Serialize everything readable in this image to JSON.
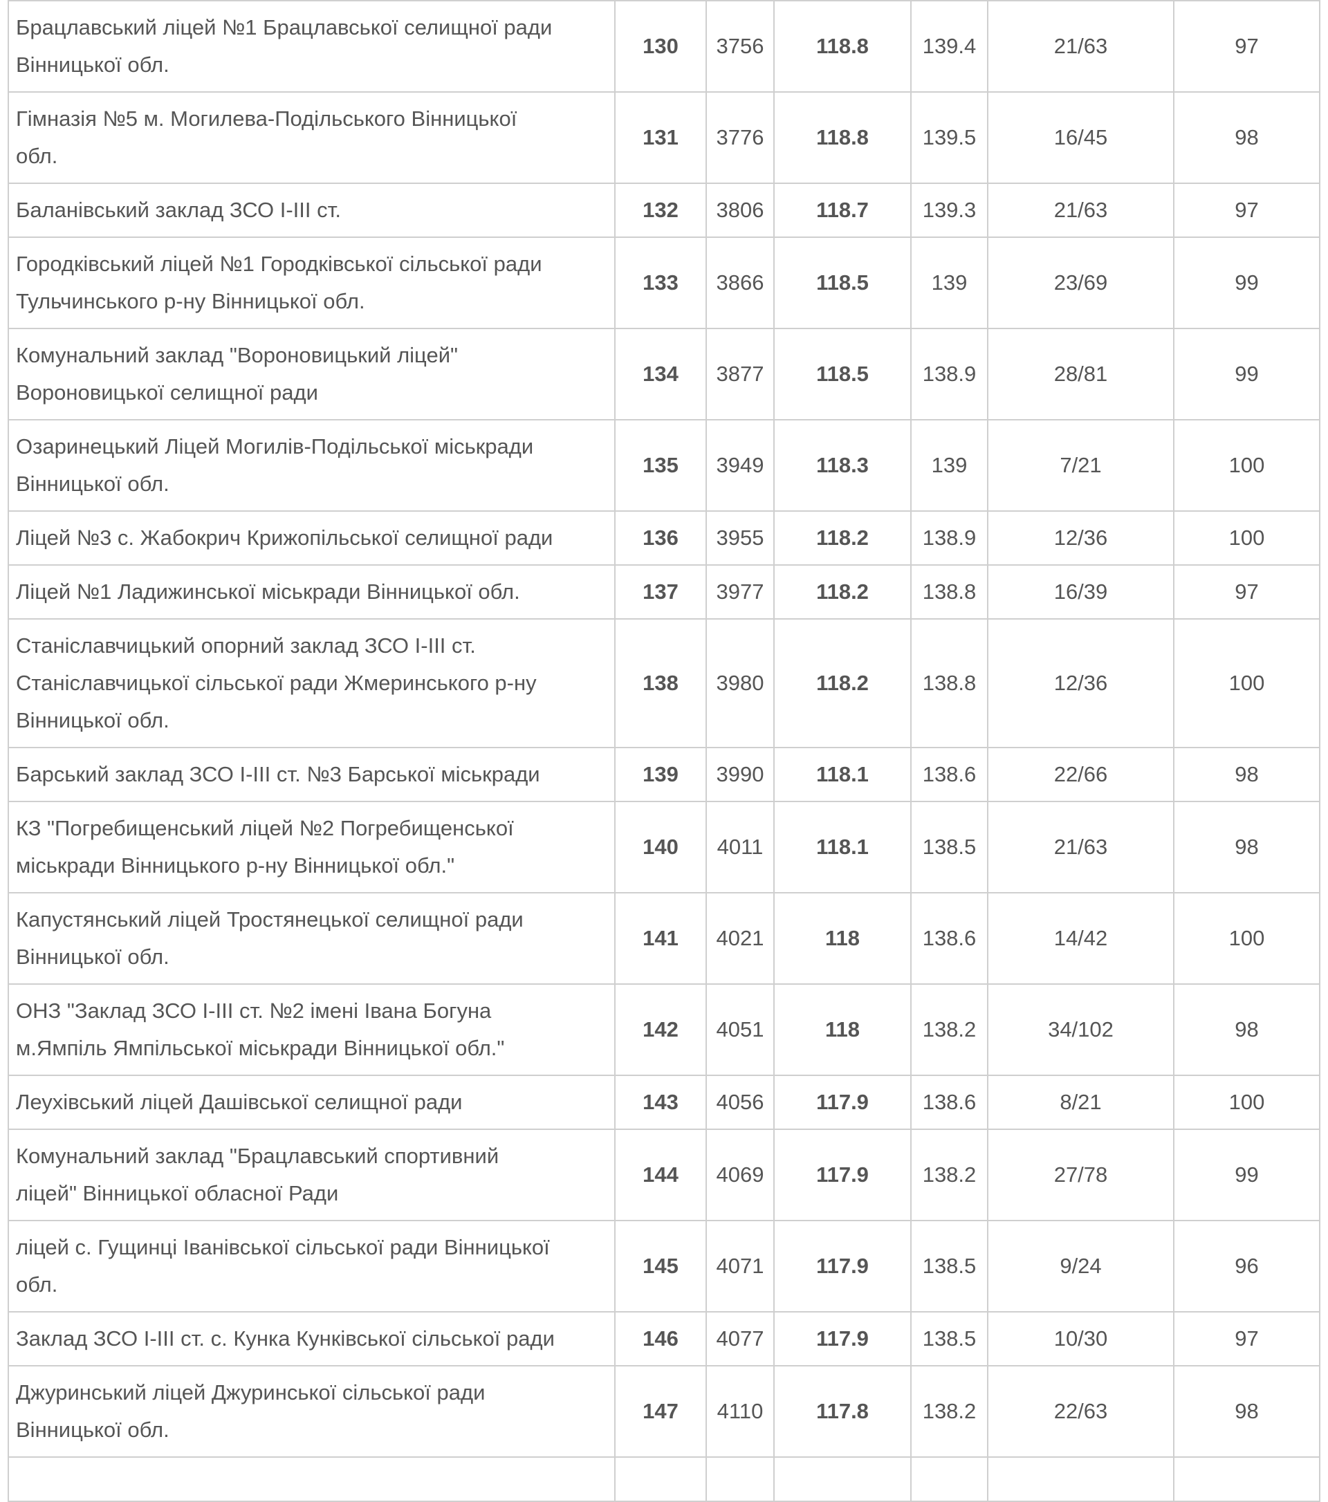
{
  "table": {
    "rows": [
      [
        [
          "Брацлавський ліцей №1 Брацлавської селищної ради",
          "Вінницької обл."
        ],
        130,
        3756,
        118.8,
        139.4,
        "21/63",
        97
      ],
      [
        [
          "Гімназія №5 м. Могилева-Подільського Вінницької",
          "обл."
        ],
        131,
        3776,
        118.8,
        139.5,
        "16/45",
        98
      ],
      [
        [
          "Баланівський заклад ЗСО I-III ст."
        ],
        132,
        3806,
        118.7,
        139.3,
        "21/63",
        97
      ],
      [
        [
          "Городківський ліцей №1 Городківської сільської ради",
          "Тульчинського р-ну Вінницької обл."
        ],
        133,
        3866,
        118.5,
        139,
        "23/69",
        99
      ],
      [
        [
          "Комунальний заклад \"Вороновицький ліцей\"",
          "Вороновицької селищної ради"
        ],
        134,
        3877,
        118.5,
        138.9,
        "28/81",
        99
      ],
      [
        [
          "Озаринецький Ліцей Могилів-Подільської міськради",
          "Вінницької обл."
        ],
        135,
        3949,
        118.3,
        139,
        "7/21",
        100
      ],
      [
        [
          "Ліцей №3 с. Жабокрич Крижопільської селищної ради"
        ],
        136,
        3955,
        118.2,
        138.9,
        "12/36",
        100
      ],
      [
        [
          "Ліцей №1 Ладижинської міськради Вінницької обл."
        ],
        137,
        3977,
        118.2,
        138.8,
        "16/39",
        97
      ],
      [
        [
          "Станіславчицький опорний заклад ЗСО I-III ст.",
          "Станіславчицької сільської ради Жмеринського р-ну",
          "Вінницької обл."
        ],
        138,
        3980,
        118.2,
        138.8,
        "12/36",
        100
      ],
      [
        [
          "Барський заклад ЗСО I-III ст. №3 Барської міськради"
        ],
        139,
        3990,
        118.1,
        138.6,
        "22/66",
        98
      ],
      [
        [
          "КЗ \"Погребищенський ліцей №2 Погребищенської",
          "міськради Вінницького р-ну Вінницької обл.\""
        ],
        140,
        4011,
        118.1,
        138.5,
        "21/63",
        98
      ],
      [
        [
          "Капустянський ліцей Тростянецької селищної ради",
          "Вінницької обл."
        ],
        141,
        4021,
        118,
        138.6,
        "14/42",
        100
      ],
      [
        [
          "ОНЗ \"Заклад ЗСО I-III ст. №2 імені Івана Богуна",
          "м.Ямпіль Ямпільської міськради Вінницької обл.\""
        ],
        142,
        4051,
        118,
        138.2,
        "34/102",
        98
      ],
      [
        [
          "Леухівський ліцей Дашівської селищної ради"
        ],
        143,
        4056,
        117.9,
        138.6,
        "8/21",
        100
      ],
      [
        [
          "Комунальний заклад \"Брацлавський спортивний",
          "ліцей\" Вінницької обласної Ради"
        ],
        144,
        4069,
        117.9,
        138.2,
        "27/78",
        99
      ],
      [
        [
          "ліцей с. Гущинці Іванівської сільської ради Вінницької",
          "обл."
        ],
        145,
        4071,
        117.9,
        138.5,
        "9/24",
        96
      ],
      [
        [
          "Заклад ЗСО I-III ст. с. Кунка Кунківської сільської ради"
        ],
        146,
        4077,
        117.9,
        138.5,
        "10/30",
        97
      ],
      [
        [
          "Джуринський ліцей Джуринської сільської ради",
          "Вінницької обл."
        ],
        147,
        4110,
        117.8,
        138.2,
        "22/63",
        98
      ]
    ]
  }
}
